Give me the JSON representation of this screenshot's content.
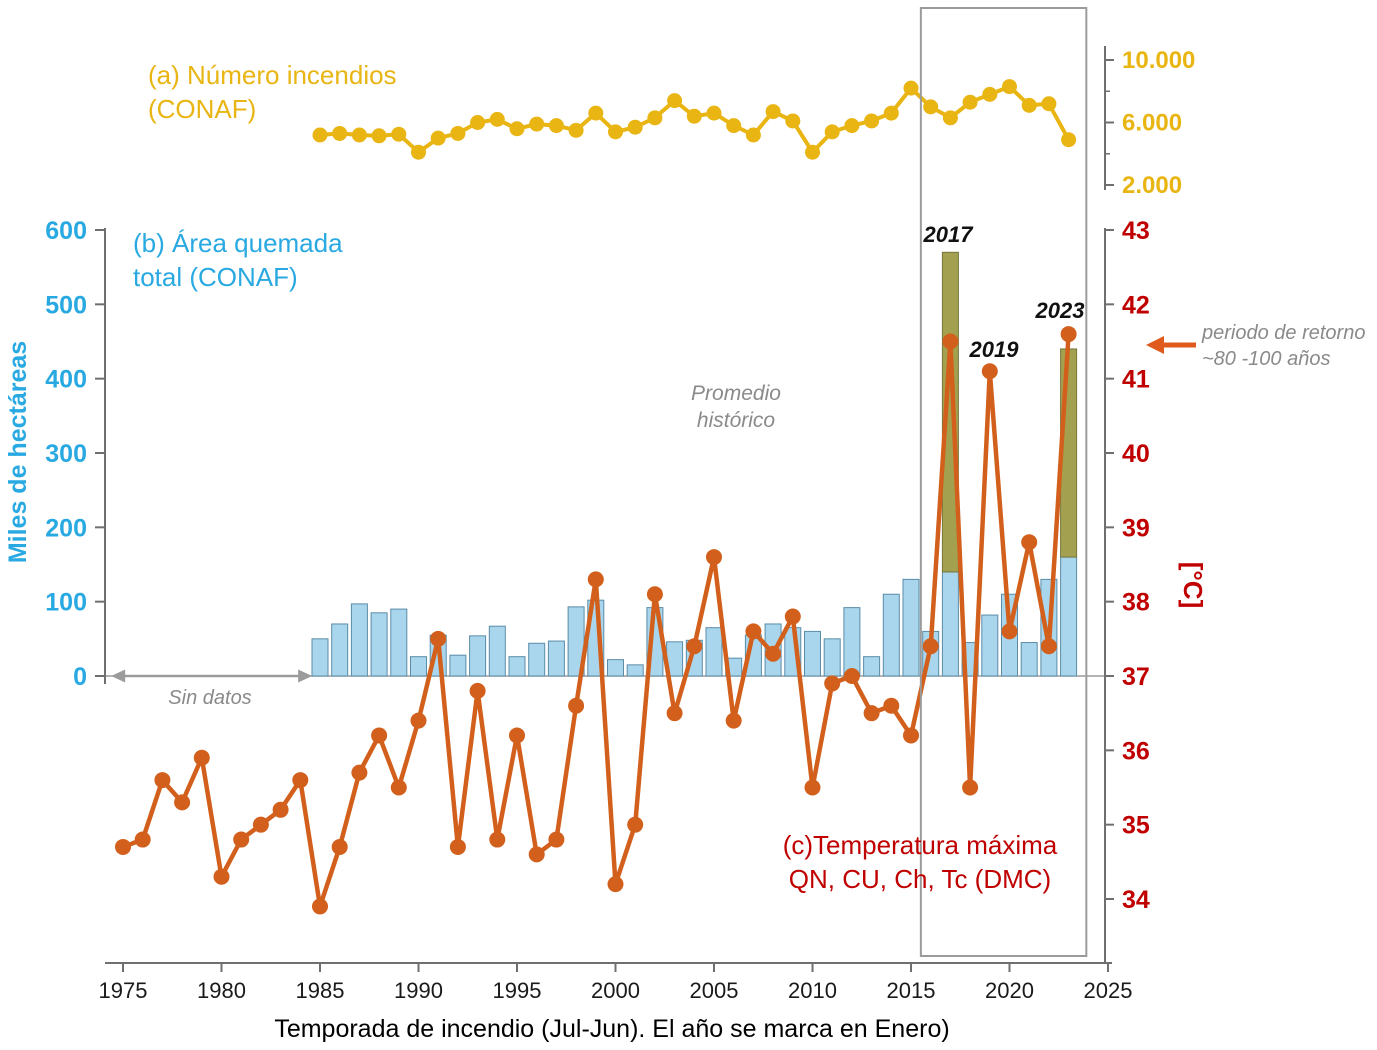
{
  "page": {
    "background": "#ffffff"
  },
  "titles": {
    "fires_line1": "(a) Número incendios",
    "fires_line2": "(CONAF)",
    "area_line1": "(b) Área quemada",
    "area_line2": "total (CONAF)",
    "temp_line1": "(c)Temperatura máxima",
    "temp_line2": "QN, CU, Ch, Tc (DMC)"
  },
  "annotations": {
    "promedio_line1": "Promedio",
    "promedio_line2": "histórico",
    "sin_datos": "Sin datos",
    "retorno_line1": "periodo de retorno",
    "retorno_line2": "~80 -100 años",
    "peak_2017": "2017",
    "peak_2019": "2019",
    "peak_2023": "2023"
  },
  "chart_data": {
    "type": "composite",
    "x_axis": {
      "label": "Temporada de incendio (Jul-Jun). El año se marca en Enero)",
      "ticks": [
        1975,
        1980,
        1985,
        1990,
        1995,
        2000,
        2005,
        2010,
        2015,
        2020,
        2025
      ],
      "range": [
        1974,
        2026
      ]
    },
    "highlight_box": {
      "year_start": 2015.5,
      "year_end": 2023.9,
      "color": "#9b9b9b"
    },
    "no_data_span": {
      "year_start": 1974.5,
      "year_end": 1984.5,
      "color": "#9b9b9b"
    },
    "retorno_arrow_color": "#E05A1E",
    "series": [
      {
        "id": "fires",
        "type": "line",
        "name": "Número incendios (CONAF)",
        "color": "#E9B512",
        "year_start": 1985,
        "values": [
          5200,
          5300,
          5200,
          5150,
          5250,
          4100,
          5000,
          5300,
          6000,
          6200,
          5600,
          5900,
          5800,
          5500,
          6600,
          5400,
          5700,
          6300,
          7400,
          6400,
          6600,
          5800,
          5200,
          6700,
          6100,
          4100,
          5400,
          5800,
          6100,
          6600,
          8200,
          7000,
          6300,
          7300,
          7800,
          8300,
          7100,
          7200,
          4900
        ],
        "axis": {
          "side": "right-top",
          "ticks": [
            2000,
            6000,
            10000
          ],
          "tick_labels": [
            "2.000",
            "6.000",
            "10.000"
          ],
          "minor_ticks": [
            4000,
            8000
          ],
          "range": [
            2000,
            10000
          ]
        }
      },
      {
        "id": "burned_area",
        "type": "bar",
        "name": "Área quemada total (CONAF)",
        "color": "#A9D6EC",
        "edge_color": "#5A8CA8",
        "highlight_color": "#A3A150",
        "highlight_edge_color": "#77763B",
        "year_start": 1985,
        "values": [
          50,
          70,
          97,
          85,
          90,
          26,
          55,
          28,
          54,
          67,
          26,
          44,
          47,
          93,
          102,
          22,
          15,
          92,
          46,
          48,
          65,
          24,
          55,
          70,
          65,
          60,
          50,
          92,
          26,
          110,
          130,
          60,
          570,
          45,
          82,
          110,
          45,
          130,
          440
        ],
        "highlights": [
          {
            "year": 2017,
            "total": 570,
            "blue_portion": 140
          },
          {
            "year": 2023,
            "total": 440,
            "blue_portion": 160
          }
        ],
        "axis": {
          "side": "left",
          "label": "Miles de hectáreas",
          "ticks": [
            0,
            100,
            200,
            300,
            400,
            500,
            600
          ],
          "range": [
            0,
            600
          ],
          "color": "#29A9E1"
        }
      },
      {
        "id": "temp_max",
        "type": "line",
        "name": "Temperatura máxima QN, CU, Ch, Tc (DMC)",
        "color": "#D2601C",
        "year_start": 1975,
        "values": [
          34.7,
          34.8,
          35.6,
          35.3,
          35.9,
          34.3,
          34.8,
          35.0,
          35.2,
          35.6,
          33.9,
          34.7,
          35.7,
          36.2,
          35.5,
          36.4,
          37.5,
          34.7,
          36.8,
          34.8,
          36.2,
          34.6,
          34.8,
          36.6,
          38.3,
          34.2,
          35.0,
          38.1,
          36.5,
          37.4,
          38.6,
          36.4,
          37.6,
          37.3,
          37.8,
          35.5,
          36.9,
          37.0,
          36.5,
          36.6,
          36.2,
          37.4,
          41.5,
          35.5,
          41.1,
          37.6,
          38.8,
          37.4,
          41.6
        ],
        "axis": {
          "side": "right",
          "label": "[°C]",
          "ticks": [
            34,
            35,
            36,
            37,
            38,
            39,
            40,
            41,
            42,
            43
          ],
          "range": [
            34,
            43
          ],
          "color": "#C00000"
        }
      }
    ]
  }
}
